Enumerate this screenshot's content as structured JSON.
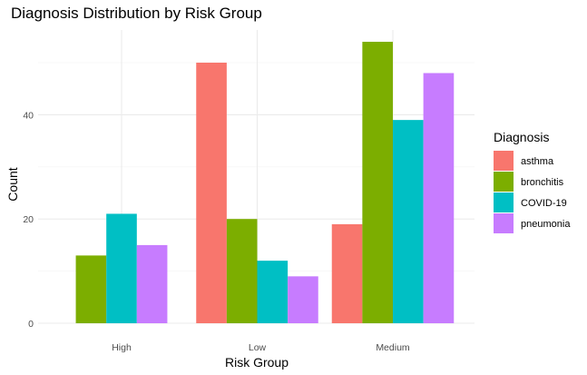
{
  "chart_data": {
    "type": "bar",
    "title": "Diagnosis Distribution by Risk Group",
    "xlabel": "Risk Group",
    "ylabel": "Count",
    "categories": [
      "High",
      "Low",
      "Medium"
    ],
    "series": [
      {
        "name": "asthma",
        "color": "#F8766D",
        "values": [
          null,
          50,
          19
        ]
      },
      {
        "name": "bronchitis",
        "color": "#7CAE00",
        "values": [
          13,
          20,
          54
        ]
      },
      {
        "name": "COVID-19",
        "color": "#00BFC4",
        "values": [
          21,
          12,
          39
        ]
      },
      {
        "name": "pneumonia",
        "color": "#C77CFF",
        "values": [
          15,
          9,
          48
        ]
      }
    ],
    "yticks": [
      0,
      20,
      40
    ],
    "ylim": [
      0,
      56
    ],
    "grid": true,
    "legend": {
      "title": "Diagnosis",
      "position": "right"
    }
  }
}
